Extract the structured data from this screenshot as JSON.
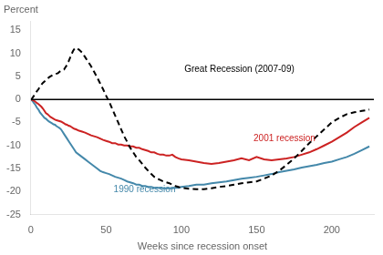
{
  "chart_data": {
    "type": "line",
    "ylabel": "Percent",
    "xlabel": "Weeks since recession onset",
    "xlim": [
      0,
      228
    ],
    "ylim": [
      -25,
      17
    ],
    "xticks": [
      0,
      50,
      100,
      150,
      200
    ],
    "yticks": [
      -25,
      -20,
      -15,
      -10,
      -5,
      0,
      5,
      10,
      15
    ],
    "grid": false,
    "x": [
      0,
      1,
      2,
      3,
      4,
      5,
      6,
      7,
      8,
      9,
      10,
      11,
      12,
      13,
      14,
      15,
      16,
      17,
      18,
      19,
      20,
      21,
      22,
      23,
      24,
      25,
      26,
      27,
      28,
      29,
      30,
      32,
      34,
      36,
      38,
      40,
      42,
      44,
      46,
      48,
      50,
      52,
      54,
      56,
      58,
      60,
      62,
      64,
      66,
      68,
      70,
      72,
      74,
      76,
      78,
      80,
      82,
      84,
      86,
      88,
      90,
      92,
      94,
      96,
      98,
      100,
      105,
      110,
      115,
      120,
      125,
      130,
      135,
      140,
      145,
      150,
      155,
      160,
      165,
      170,
      175,
      180,
      185,
      190,
      195,
      200,
      205,
      210,
      215,
      220,
      225
    ],
    "series": [
      {
        "color": "#000000",
        "line_style": "dashed",
        "values": [
          0,
          0.3,
          0.8,
          1.2,
          1.8,
          2.2,
          2.8,
          3.2,
          3.6,
          3.9,
          4.2,
          4.5,
          4.8,
          5.0,
          5.2,
          5.4,
          5.5,
          5.6,
          5.7,
          6.0,
          6.2,
          6.4,
          6.5,
          7.0,
          7.5,
          8.2,
          9.0,
          9.8,
          10.5,
          11.0,
          11.2,
          10.8,
          10.2,
          9.2,
          8.2,
          7.2,
          6.0,
          4.8,
          3.5,
          2.2,
          0.8,
          -0.5,
          -2.0,
          -3.5,
          -5.0,
          -6.5,
          -8.0,
          -9.2,
          -10.5,
          -11.5,
          -12.5,
          -13.2,
          -14.0,
          -14.8,
          -15.5,
          -16.2,
          -16.8,
          -17.2,
          -17.5,
          -17.8,
          -18.0,
          -18.2,
          -18.5,
          -18.8,
          -19.0,
          -19.2,
          -19.4,
          -19.5,
          -19.5,
          -19.3,
          -19.0,
          -18.8,
          -18.5,
          -18.2,
          -18.0,
          -17.8,
          -17.2,
          -16.5,
          -15.5,
          -14.2,
          -12.8,
          -11.2,
          -9.5,
          -8.0,
          -6.5,
          -5.0,
          -4.0,
          -3.2,
          -2.8,
          -2.5,
          -2.2
        ]
      },
      {
        "color": "#cc2222",
        "line_style": "solid",
        "values": [
          0,
          -0.1,
          -0.3,
          -0.5,
          -0.8,
          -1.0,
          -1.3,
          -1.6,
          -2.0,
          -2.5,
          -3.0,
          -3.2,
          -3.5,
          -3.8,
          -4.0,
          -4.2,
          -4.4,
          -4.5,
          -4.6,
          -4.7,
          -4.8,
          -5.0,
          -5.2,
          -5.4,
          -5.5,
          -5.7,
          -5.8,
          -6.0,
          -6.2,
          -6.4,
          -6.5,
          -6.8,
          -7.0,
          -7.2,
          -7.5,
          -7.8,
          -8.0,
          -8.2,
          -8.5,
          -8.8,
          -9.0,
          -9.2,
          -9.5,
          -9.5,
          -9.8,
          -9.8,
          -10.0,
          -10.0,
          -10.2,
          -10.2,
          -10.5,
          -10.5,
          -10.8,
          -11.0,
          -11.2,
          -11.5,
          -11.5,
          -11.8,
          -12.0,
          -12.0,
          -12.2,
          -12.2,
          -12.0,
          -12.5,
          -12.8,
          -13.0,
          -13.2,
          -13.5,
          -13.8,
          -14.0,
          -13.8,
          -13.5,
          -13.2,
          -12.8,
          -13.2,
          -12.5,
          -13.0,
          -13.2,
          -13.0,
          -12.8,
          -12.5,
          -12.0,
          -11.5,
          -10.8,
          -10.0,
          -9.2,
          -8.2,
          -7.2,
          -6.0,
          -5.0,
          -4.0
        ]
      },
      {
        "color": "#4488aa",
        "line_style": "solid",
        "values": [
          0,
          -0.3,
          -0.8,
          -1.2,
          -1.8,
          -2.2,
          -2.8,
          -3.2,
          -3.6,
          -4.0,
          -4.2,
          -4.5,
          -4.8,
          -5.0,
          -5.2,
          -5.4,
          -5.5,
          -5.8,
          -6.0,
          -6.2,
          -6.5,
          -7.0,
          -7.5,
          -8.0,
          -8.5,
          -9.0,
          -9.5,
          -10.0,
          -10.5,
          -11.0,
          -11.5,
          -12.0,
          -12.5,
          -13.0,
          -13.5,
          -14.0,
          -14.5,
          -15.0,
          -15.5,
          -15.8,
          -16.0,
          -16.2,
          -16.5,
          -16.8,
          -17.0,
          -17.2,
          -17.5,
          -17.8,
          -18.0,
          -18.2,
          -18.5,
          -18.5,
          -18.8,
          -18.8,
          -19.0,
          -19.0,
          -19.2,
          -19.2,
          -19.2,
          -19.3,
          -19.3,
          -19.3,
          -19.3,
          -19.2,
          -19.2,
          -19.0,
          -18.8,
          -18.5,
          -18.5,
          -18.2,
          -18.0,
          -17.8,
          -17.5,
          -17.2,
          -17.0,
          -16.8,
          -16.5,
          -16.2,
          -15.8,
          -15.5,
          -15.2,
          -14.8,
          -14.5,
          -14.2,
          -13.8,
          -13.5,
          -13.0,
          -12.5,
          -11.8,
          -11.0,
          -10.2
        ]
      }
    ],
    "annotations": [
      {
        "text": "Great Recession (2007-09)",
        "x": 102,
        "y": 6.5,
        "color": "#000000"
      },
      {
        "text": "2001 recession",
        "x": 148,
        "y": -8.5,
        "color": "#cc2222"
      },
      {
        "text": "1990 recession",
        "x": 55,
        "y": -19.5,
        "color": "#4488aa"
      }
    ]
  }
}
